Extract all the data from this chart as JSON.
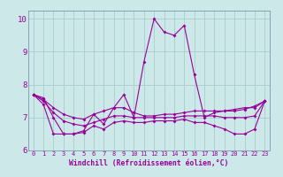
{
  "xlabel": "Windchill (Refroidissement éolien,°C)",
  "x": [
    0,
    1,
    2,
    3,
    4,
    5,
    6,
    7,
    8,
    9,
    10,
    11,
    12,
    13,
    14,
    15,
    16,
    17,
    18,
    19,
    20,
    21,
    22,
    23
  ],
  "line1": [
    7.7,
    7.6,
    7.0,
    6.5,
    6.5,
    6.6,
    7.1,
    6.8,
    7.3,
    7.7,
    7.0,
    8.7,
    10.0,
    9.6,
    9.5,
    9.8,
    8.3,
    7.0,
    7.15,
    7.2,
    7.25,
    7.3,
    7.3,
    7.5
  ],
  "line2": [
    7.7,
    7.55,
    7.3,
    7.1,
    7.0,
    6.95,
    7.1,
    7.2,
    7.3,
    7.3,
    7.15,
    7.05,
    7.05,
    7.1,
    7.1,
    7.15,
    7.2,
    7.2,
    7.2,
    7.2,
    7.2,
    7.25,
    7.35,
    7.5
  ],
  "line3": [
    7.7,
    7.5,
    7.15,
    6.9,
    6.8,
    6.75,
    6.85,
    6.95,
    7.05,
    7.05,
    7.0,
    7.0,
    7.0,
    7.0,
    7.0,
    7.05,
    7.05,
    7.05,
    7.05,
    7.0,
    7.0,
    7.0,
    7.05,
    7.5
  ],
  "line4": [
    7.7,
    7.4,
    6.5,
    6.5,
    6.5,
    6.55,
    6.75,
    6.65,
    6.85,
    6.9,
    6.85,
    6.85,
    6.9,
    6.9,
    6.9,
    6.95,
    6.85,
    6.85,
    6.75,
    6.65,
    6.5,
    6.5,
    6.65,
    7.5
  ],
  "line_color": "#990099",
  "bg_color": "#cce8e8",
  "grid_color": "#aacccc",
  "ylim": [
    6.0,
    10.25
  ],
  "yticks": [
    6,
    7,
    8,
    9,
    10
  ],
  "xlim": [
    -0.5,
    23.5
  ]
}
